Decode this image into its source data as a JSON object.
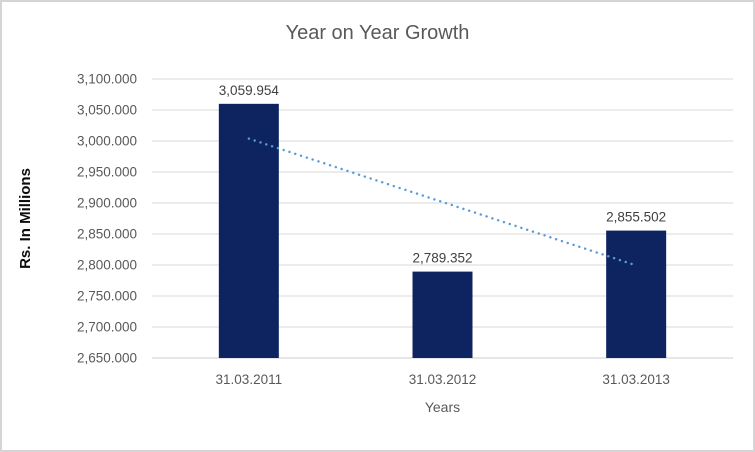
{
  "chart_data": {
    "type": "bar",
    "title": "Year on Year Growth",
    "xlabel": "Years",
    "ylabel": "Rs. In Millions",
    "categories": [
      "31.03.2011",
      "31.03.2012",
      "31.03.2013"
    ],
    "values": [
      3059.954,
      2789.352,
      2855.502
    ],
    "value_labels": [
      "3,059.954",
      "2,789.352",
      "2,855.502"
    ],
    "ylim": [
      2650,
      3100
    ],
    "y_step": 50,
    "y_ticks": [
      {
        "value": 3100,
        "label": "3,100.000"
      },
      {
        "value": 3050,
        "label": "3,050.000"
      },
      {
        "value": 3000,
        "label": "3,000.000"
      },
      {
        "value": 2950,
        "label": "2,950.000"
      },
      {
        "value": 2900,
        "label": "2,900.000"
      },
      {
        "value": 2850,
        "label": "2,850.000"
      },
      {
        "value": 2800,
        "label": "2,800.000"
      },
      {
        "value": 2750,
        "label": "2,750.000"
      },
      {
        "value": 2700,
        "label": "2,700.000"
      },
      {
        "value": 2650,
        "label": "2,650.000"
      }
    ],
    "grid": true,
    "legend": "none",
    "trendline": {
      "type": "linear",
      "style": "dotted"
    },
    "colors": {
      "bar": "#0d2460",
      "trendline": "#5b9bd5",
      "gridline": "#d9d9d9",
      "axis_line": "#cfcdcd",
      "tick_text": "#595959",
      "data_label_text": "#404040",
      "title_text": "#595959",
      "axis_title_text": "#595959",
      "background": "#ffffff",
      "chart_border": "#d6d4d4"
    }
  }
}
